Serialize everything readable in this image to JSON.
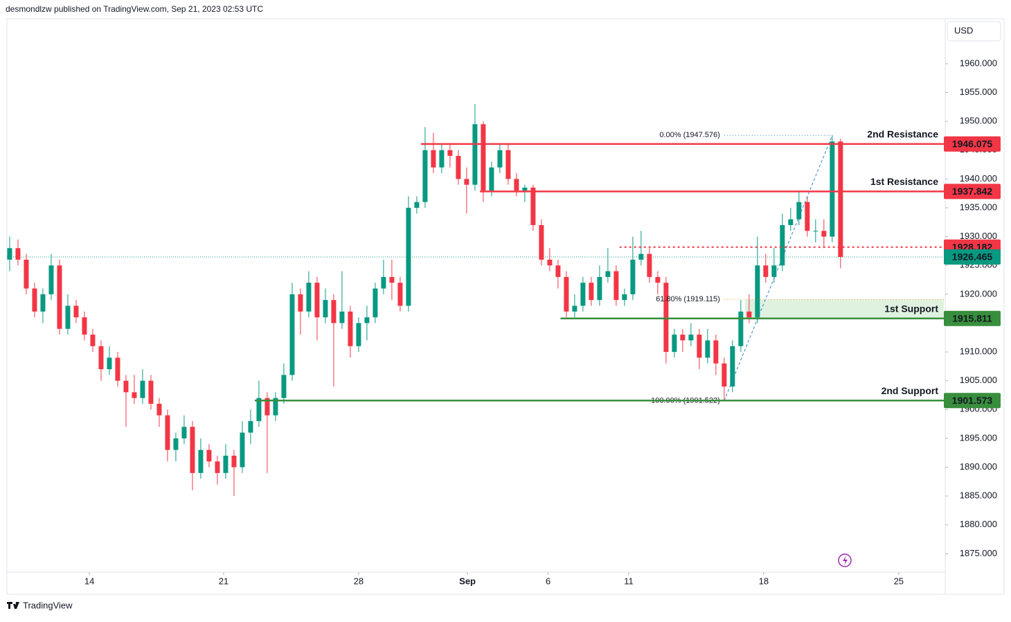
{
  "header": {
    "publisher": "desmondlzw published on TradingView.com, Sep 21, 2023 02:53 UTC",
    "currency": "USD",
    "brand": "TradingView"
  },
  "chart_data": {
    "type": "candlestick",
    "up_color": "#089981",
    "down_color": "#f23645",
    "xlim": [
      -0.33,
      112.6
    ],
    "ylim": [
      1871.8,
      1967.8
    ],
    "xticks": [
      {
        "value": 9.6,
        "label": "14"
      },
      {
        "value": 25.75,
        "label": "21"
      },
      {
        "value": 42,
        "label": "28"
      },
      {
        "value": 55.1,
        "label": "Sep"
      },
      {
        "value": 64.8,
        "label": "6"
      },
      {
        "value": 74.5,
        "label": "11"
      },
      {
        "value": 90.75,
        "label": "18"
      },
      {
        "value": 107,
        "label": "25"
      }
    ],
    "yticks": [
      {
        "value": 1875,
        "label": "1875.000"
      },
      {
        "value": 1880,
        "label": "1880.000"
      },
      {
        "value": 1885,
        "label": "1885.000"
      },
      {
        "value": 1890,
        "label": "1890.000"
      },
      {
        "value": 1895,
        "label": "1895.000"
      },
      {
        "value": 1900,
        "label": "1900.000"
      },
      {
        "value": 1905,
        "label": "1905.000"
      },
      {
        "value": 1910,
        "label": "1910.000"
      },
      {
        "value": 1915,
        "label": "1915.000"
      },
      {
        "value": 1920,
        "label": "1920.000"
      },
      {
        "value": 1925,
        "label": "1925.000"
      },
      {
        "value": 1930,
        "label": "1930.000"
      },
      {
        "value": 1935,
        "label": "1935.000"
      },
      {
        "value": 1940,
        "label": "1940.000"
      },
      {
        "value": 1945,
        "label": "1945.000"
      },
      {
        "value": 1950,
        "label": "1950.000"
      },
      {
        "value": 1955,
        "label": "1955.000"
      },
      {
        "value": 1960,
        "label": "1960.000"
      }
    ],
    "ohlc": [
      [
        1926,
        1930,
        1924,
        1928
      ],
      [
        1928,
        1929.5,
        1925,
        1926
      ],
      [
        1926,
        1927,
        1920,
        1921
      ],
      [
        1921,
        1922,
        1916,
        1917
      ],
      [
        1917,
        1921,
        1915,
        1920
      ],
      [
        1920,
        1927,
        1919,
        1925
      ],
      [
        1925,
        1926,
        1913,
        1914
      ],
      [
        1914,
        1920,
        1913,
        1918
      ],
      [
        1918,
        1919,
        1915,
        1916
      ],
      [
        1916,
        1917,
        1912,
        1913
      ],
      [
        1913,
        1914,
        1910,
        1911
      ],
      [
        1911,
        1912,
        1905,
        1907
      ],
      [
        1907,
        1911,
        1906,
        1909
      ],
      [
        1909,
        1910,
        1904,
        1905
      ],
      [
        1905,
        1906,
        1897,
        1903
      ],
      [
        1903,
        1906,
        1901,
        1902
      ],
      [
        1902,
        1907,
        1901,
        1905
      ],
      [
        1905,
        1906,
        1900,
        1901
      ],
      [
        1901,
        1902,
        1897,
        1899
      ],
      [
        1899,
        1900,
        1891,
        1893
      ],
      [
        1893,
        1896,
        1891,
        1895
      ],
      [
        1895,
        1899,
        1894,
        1897
      ],
      [
        1897,
        1898,
        1886,
        1889
      ],
      [
        1889,
        1895,
        1888,
        1893
      ],
      [
        1893,
        1894,
        1890,
        1891
      ],
      [
        1891,
        1892,
        1887,
        1889
      ],
      [
        1889,
        1894,
        1888,
        1892
      ],
      [
        1892,
        1893,
        1885,
        1890
      ],
      [
        1890,
        1898,
        1889,
        1896
      ],
      [
        1896,
        1900,
        1894,
        1898
      ],
      [
        1898,
        1905,
        1897,
        1902
      ],
      [
        1902,
        1903,
        1889,
        1899
      ],
      [
        1899,
        1903,
        1898,
        1902
      ],
      [
        1902,
        1908,
        1901,
        1906
      ],
      [
        1906,
        1922,
        1905,
        1920
      ],
      [
        1920,
        1921,
        1913,
        1917
      ],
      [
        1917,
        1924,
        1916,
        1922
      ],
      [
        1922,
        1923,
        1912,
        1916
      ],
      [
        1916,
        1921,
        1915,
        1919
      ],
      [
        1919,
        1920,
        1904,
        1915
      ],
      [
        1915,
        1924,
        1914,
        1917
      ],
      [
        1917,
        1918,
        1909,
        1911
      ],
      [
        1911,
        1916,
        1910,
        1915
      ],
      [
        1915,
        1918,
        1912,
        1916
      ],
      [
        1916,
        1922,
        1915,
        1921
      ],
      [
        1921,
        1926,
        1920,
        1923
      ],
      [
        1923,
        1926,
        1919,
        1922
      ],
      [
        1922,
        1923,
        1917,
        1918
      ],
      [
        1918,
        1937,
        1917,
        1935
      ],
      [
        1935,
        1937,
        1934,
        1936
      ],
      [
        1936,
        1949,
        1935,
        1945
      ],
      [
        1945,
        1948,
        1941,
        1942
      ],
      [
        1942,
        1946,
        1941,
        1945
      ],
      [
        1945,
        1946,
        1942,
        1944
      ],
      [
        1944,
        1945,
        1939,
        1940
      ],
      [
        1940,
        1942,
        1934,
        1939
      ],
      [
        1939,
        1953,
        1938,
        1949.5
      ],
      [
        1949.5,
        1950,
        1936,
        1938
      ],
      [
        1938,
        1943,
        1937,
        1942
      ],
      [
        1942,
        1946,
        1941,
        1945
      ],
      [
        1945,
        1946,
        1939,
        1940
      ],
      [
        1940,
        1941,
        1937,
        1938
      ],
      [
        1938,
        1939,
        1936,
        1938.5
      ],
      [
        1938.5,
        1939,
        1931,
        1932
      ],
      [
        1932,
        1933,
        1925,
        1926
      ],
      [
        1926,
        1928,
        1924,
        1925
      ],
      [
        1925,
        1926,
        1921,
        1923
      ],
      [
        1923,
        1924,
        1916,
        1917
      ],
      [
        1917,
        1920,
        1916,
        1918
      ],
      [
        1918,
        1923,
        1917,
        1922
      ],
      [
        1922,
        1923,
        1918,
        1919
      ],
      [
        1919,
        1925,
        1918,
        1923
      ],
      [
        1923,
        1928,
        1922,
        1924
      ],
      [
        1924,
        1925,
        1918,
        1919
      ],
      [
        1919,
        1921,
        1918,
        1920
      ],
      [
        1920,
        1930,
        1919,
        1926
      ],
      [
        1926,
        1931,
        1925,
        1927
      ],
      [
        1927,
        1928,
        1922,
        1923
      ],
      [
        1923,
        1924,
        1920,
        1922
      ],
      [
        1922,
        1923,
        1908,
        1910
      ],
      [
        1910,
        1914,
        1909,
        1913
      ],
      [
        1913,
        1914,
        1910,
        1912
      ],
      [
        1912,
        1915,
        1911,
        1913
      ],
      [
        1913,
        1914,
        1907,
        1909
      ],
      [
        1909,
        1914,
        1908,
        1912
      ],
      [
        1912,
        1913,
        1906,
        1908
      ],
      [
        1908,
        1909,
        1901.5,
        1904
      ],
      [
        1904,
        1912,
        1903,
        1911
      ],
      [
        1911,
        1919,
        1910,
        1917
      ],
      [
        1917,
        1920,
        1915,
        1916
      ],
      [
        1916,
        1930,
        1915,
        1925
      ],
      [
        1925,
        1927,
        1922,
        1923
      ],
      [
        1923,
        1928,
        1922,
        1925
      ],
      [
        1925,
        1934,
        1924,
        1932
      ],
      [
        1932,
        1935,
        1931,
        1933
      ],
      [
        1933,
        1938,
        1932,
        1936
      ],
      [
        1936,
        1937,
        1930,
        1931
      ],
      [
        1931,
        1933,
        1929,
        1931
      ],
      [
        1931,
        1933,
        1928,
        1930
      ],
      [
        1930,
        1947.6,
        1929,
        1946.5
      ],
      [
        1946.5,
        1947,
        1924.5,
        1926.465
      ]
    ],
    "levels": [
      {
        "name": "2nd Resistance",
        "value": 1946.075,
        "color": "#f23645",
        "start": 49.5,
        "style": "solid"
      },
      {
        "name": "1st Resistance",
        "value": 1937.842,
        "color": "#f23645",
        "start": 56.6,
        "style": "solid"
      },
      {
        "value": 1928.182,
        "color": "#f23645",
        "start": 73.4,
        "style": "dotted"
      },
      {
        "name": "1st Support",
        "value": 1915.811,
        "color": "#388e3c",
        "start": 66.3,
        "style": "solid"
      },
      {
        "name": "2nd Support",
        "value": 1901.573,
        "color": "#388e3c",
        "start": 29.5,
        "style": "solid"
      }
    ],
    "fib": {
      "from": 86,
      "to": 99,
      "levels": [
        {
          "label": "0.00% (1947.576)",
          "value": 1947.576,
          "color": "#2f86c8"
        },
        {
          "label": "61.80% (1919.115)",
          "value": 1919.115,
          "color": "#f0a020"
        },
        {
          "label": "100.00% (1901.522)",
          "value": 1901.522,
          "color": "#2f86c8"
        }
      ]
    },
    "zone": {
      "start": 88.5,
      "color": "#4caf50"
    }
  }
}
